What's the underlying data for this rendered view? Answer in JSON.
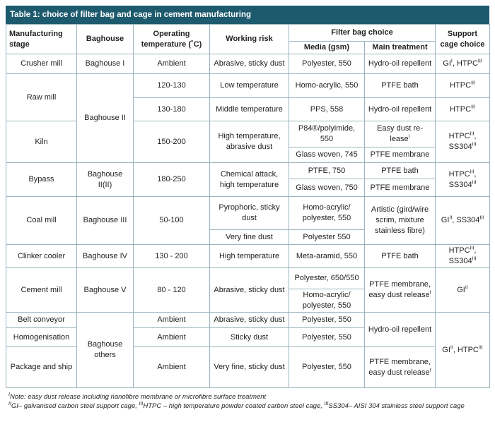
{
  "title": "Table 1: choice of filter bag and cage in cement manufacturing",
  "header": {
    "stage": "Manufacturing stage",
    "baghouse": "Baghouse",
    "temperature": "Operating temperature (˚C)",
    "risk": "Working risk",
    "filter_bag": "Filter bag choice",
    "media": "Media (gsm)",
    "treatment": "Main treatment",
    "cage": "Support cage choice"
  },
  "table": {
    "rows": [
      [
        "Crusher mill",
        "Baghouse I",
        "Ambient",
        "Abrasive, sticky dust",
        "Polyester, 550",
        "Hydro-oil repellent",
        [
          {
            "text": "GI",
            "sup": "I"
          },
          {
            "text": ", HTPC",
            "sup": "III"
          }
        ]
      ],
      [
        "Raw mill",
        "Baghouse II",
        "120-130",
        "Low temperature",
        "Homo-acrylic, 550",
        "PTFE bath",
        [
          {
            "text": "HTPC",
            "sup": "III"
          }
        ]
      ],
      [
        "130-180",
        "Middle temperature",
        "PPS, 558",
        "Hydro-oil repellent",
        [
          {
            "text": "HTPC",
            "sup": "III"
          }
        ]
      ],
      [
        "Kiln",
        "150-200",
        "High temperature, abrasive dust",
        "P84®/polyimide, 550",
        [
          {
            "text": "Easy dust re-lease",
            "sup": "I"
          }
        ],
        [
          {
            "text": "HTPC",
            "sup": "III"
          },
          {
            "text": ", SS304",
            "sup": "III"
          }
        ]
      ],
      [
        "Glass woven, 745",
        "PTFE membrane"
      ],
      [
        "Bypass",
        "Baghouse II(II)",
        "180-250",
        "Chemical attack, high temperature",
        "PTFE, 750",
        "PTFE bath",
        [
          {
            "text": "HTPC",
            "sup": "III"
          },
          {
            "text": ", SS304",
            "sup": "III"
          }
        ]
      ],
      [
        "Glass woven, 750",
        "PTFE membrane"
      ],
      [
        "Coal mill",
        "Baghouse III",
        "50-100",
        "Pyrophoric, sticky dust",
        "Homo-acrylic/ polyester, 550",
        "Artistic (gird/wire scrim, mixture stainless fibre)",
        [
          {
            "text": "GI",
            "sup": "II"
          },
          {
            "text": ", SS304",
            "sup": "III"
          }
        ]
      ],
      [
        "Very fine dust",
        "Polyester 550"
      ],
      [
        "Clinker cooler",
        "Baghouse IV",
        "130 - 200",
        "High temperature",
        "Meta-aramid, 550",
        "PTFE bath",
        [
          {
            "text": "HTPC",
            "sup": "III"
          },
          {
            "text": ", SS304",
            "sup": "III"
          }
        ]
      ],
      [
        "Cement mill",
        "Baghouse V",
        "80 - 120",
        "Abrasive, sticky dust",
        "Polyester, 650/550",
        [
          {
            "text": "PTFE membrane, easy dust release",
            "sup": "I"
          }
        ],
        [
          {
            "text": "GI",
            "sup": "II"
          }
        ]
      ],
      [
        "Homo-acrylic/ polyester, 550"
      ],
      [
        "Belt conveyor",
        "Baghouse others",
        "Ambient",
        "Abrasive, sticky dust",
        "Polyester, 550",
        "Hydro-oil repellent",
        [
          {
            "text": "GI",
            "sup": "II"
          },
          {
            "text": ", HTPC",
            "sup": "III"
          }
        ]
      ],
      [
        "Homogenisation",
        "Ambient",
        "Sticky dust",
        "Polyester, 550"
      ],
      [
        "Package and ship",
        "Ambient",
        "Very fine, sticky dust",
        "Polyester, 550",
        [
          {
            "text": "PTFE membrane, easy dust release",
            "sup": "I"
          }
        ]
      ]
    ]
  },
  "footnotes": [
    [
      {
        "sup": "I",
        "text": "Note: easy dust release including nanofibre membrane or microfibre surface treatment"
      }
    ],
    [
      {
        "sup": "II",
        "text": "GI– galvanised carbon steel support cage, "
      },
      {
        "sup": "III",
        "text": "HTPC – high temperature powder coated carbon steel cage, "
      },
      {
        "sup": "III",
        "text": "SS304– AISI 304 stainless steel support cage"
      }
    ]
  ]
}
